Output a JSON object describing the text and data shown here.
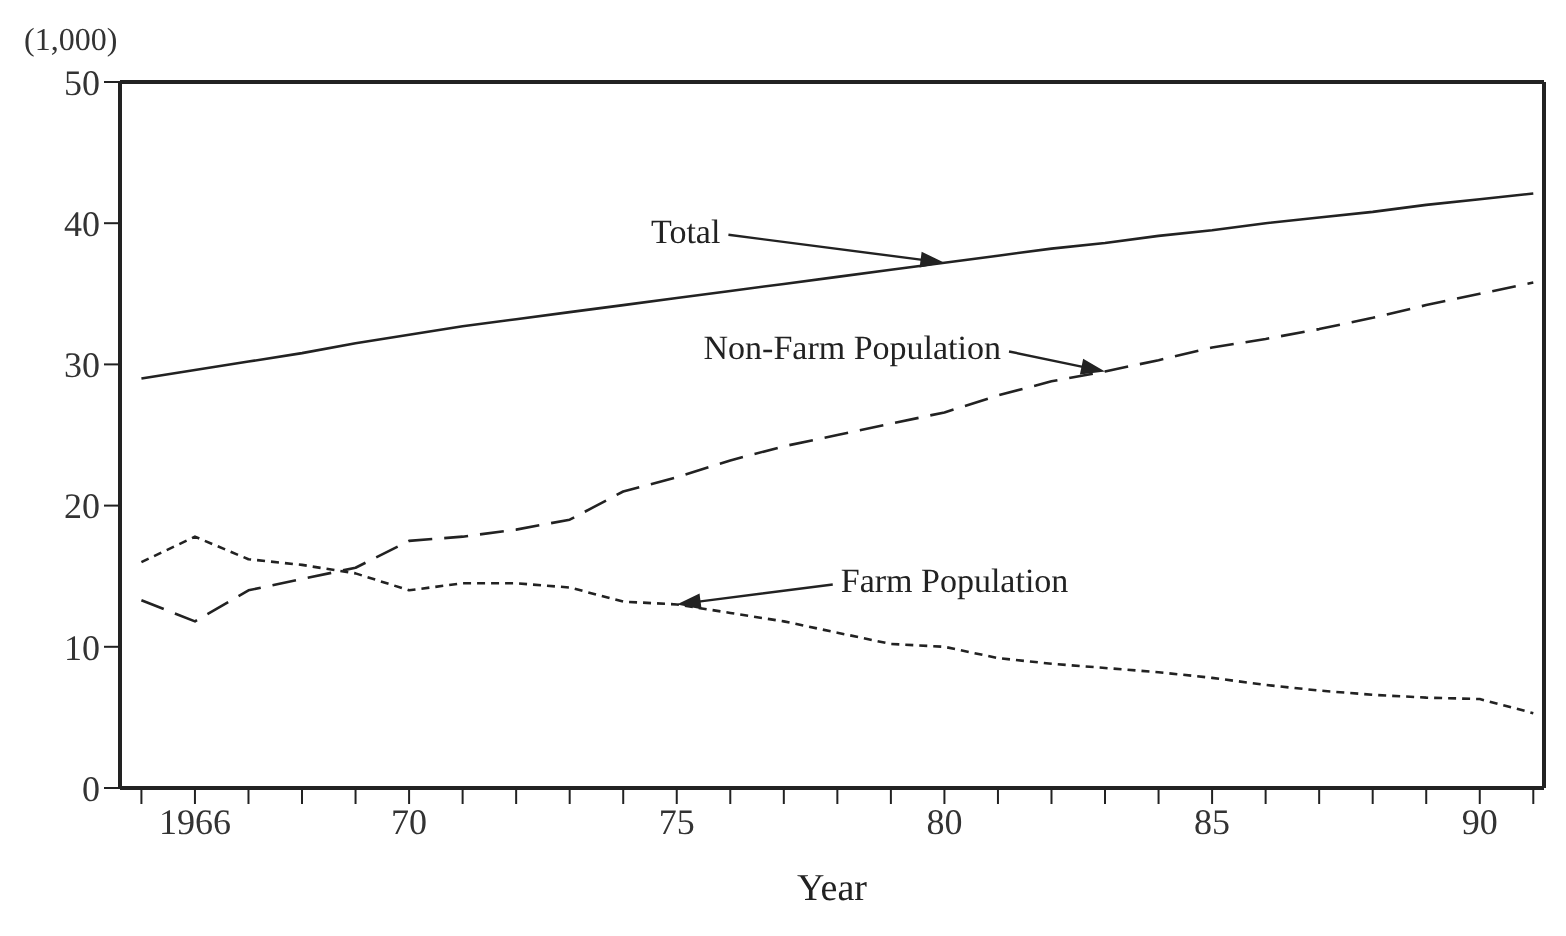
{
  "chart_data": {
    "type": "line",
    "ylabel": "(1,000)",
    "xlabel": "Year",
    "x": [
      1965,
      1966,
      1967,
      1968,
      1969,
      1970,
      1971,
      1972,
      1973,
      1974,
      1975,
      1976,
      1977,
      1978,
      1979,
      1980,
      1981,
      1982,
      1983,
      1984,
      1985,
      1986,
      1987,
      1988,
      1989,
      1990,
      1991
    ],
    "series": [
      {
        "name": "Total",
        "color": "#222222",
        "line_style": "solid",
        "values": [
          29.0,
          29.6,
          30.2,
          30.8,
          31.5,
          32.1,
          32.7,
          33.2,
          33.7,
          34.2,
          34.7,
          35.2,
          35.7,
          36.2,
          36.7,
          37.2,
          37.7,
          38.2,
          38.6,
          39.1,
          39.5,
          40.0,
          40.4,
          40.8,
          41.3,
          41.7,
          42.1
        ]
      },
      {
        "name": "Non-Farm Population",
        "color": "#222222",
        "line_style": "dashed",
        "values": [
          13.3,
          11.8,
          14.0,
          14.8,
          15.6,
          17.5,
          17.8,
          18.3,
          19.0,
          21.0,
          22.0,
          23.2,
          24.2,
          25.0,
          25.8,
          26.6,
          27.8,
          28.8,
          29.5,
          30.3,
          31.2,
          31.8,
          32.5,
          33.3,
          34.2,
          35.0,
          35.8
        ]
      },
      {
        "name": "Farm Population",
        "color": "#222222",
        "line_style": "dotted",
        "values": [
          16.0,
          17.8,
          16.2,
          15.8,
          15.2,
          14.0,
          14.5,
          14.5,
          14.2,
          13.2,
          13.0,
          12.4,
          11.8,
          11.0,
          10.2,
          10.0,
          9.2,
          8.8,
          8.5,
          8.2,
          7.8,
          7.3,
          6.9,
          6.6,
          6.4,
          6.3,
          5.3
        ]
      }
    ],
    "xlim": [
      1964.6,
      1991.2
    ],
    "xticks": [
      {
        "value": 1965,
        "label": null
      },
      {
        "value": 1966,
        "label": "1966"
      },
      {
        "value": 1967,
        "label": null
      },
      {
        "value": 1968,
        "label": null
      },
      {
        "value": 1969,
        "label": null
      },
      {
        "value": 1970,
        "label": "70"
      },
      {
        "value": 1971,
        "label": null
      },
      {
        "value": 1972,
        "label": null
      },
      {
        "value": 1973,
        "label": null
      },
      {
        "value": 1974,
        "label": null
      },
      {
        "value": 1975,
        "label": "75"
      },
      {
        "value": 1976,
        "label": null
      },
      {
        "value": 1977,
        "label": null
      },
      {
        "value": 1978,
        "label": null
      },
      {
        "value": 1979,
        "label": null
      },
      {
        "value": 1980,
        "label": "80"
      },
      {
        "value": 1981,
        "label": null
      },
      {
        "value": 1982,
        "label": null
      },
      {
        "value": 1983,
        "label": null
      },
      {
        "value": 1984,
        "label": null
      },
      {
        "value": 1985,
        "label": "85"
      },
      {
        "value": 1986,
        "label": null
      },
      {
        "value": 1987,
        "label": null
      },
      {
        "value": 1988,
        "label": null
      },
      {
        "value": 1989,
        "label": null
      },
      {
        "value": 1990,
        "label": "90"
      },
      {
        "value": 1991,
        "label": null
      }
    ],
    "ylim": [
      0,
      50
    ],
    "yticks": [
      0,
      10,
      20,
      30,
      40,
      50
    ]
  }
}
